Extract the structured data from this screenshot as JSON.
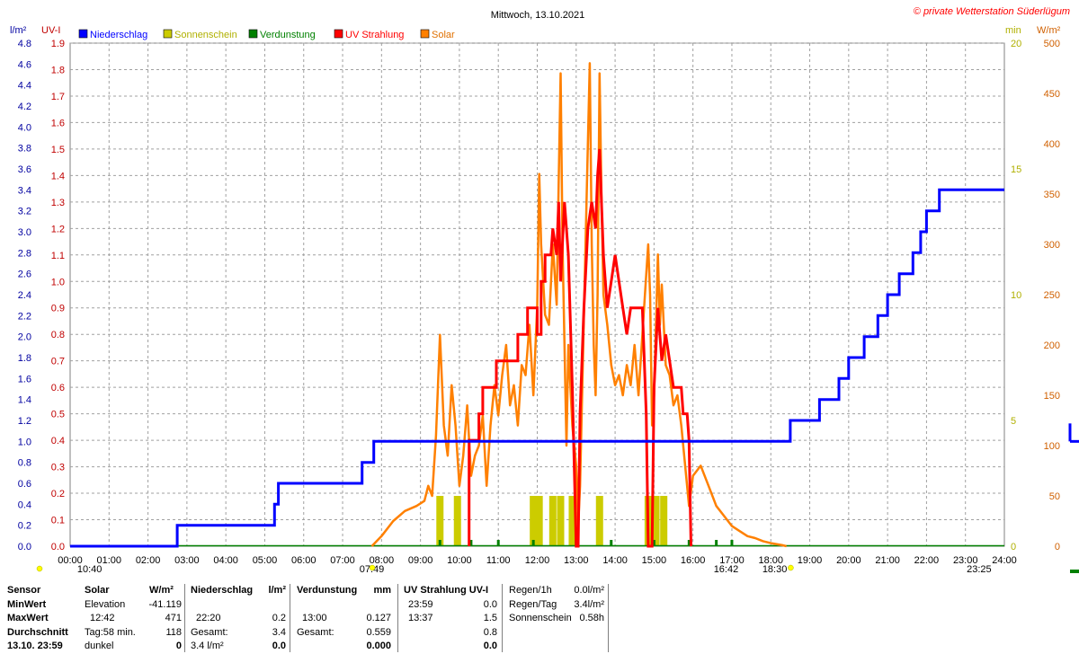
{
  "title": "Mittwoch, 13.10.2021",
  "copyright": "© private Wetterstation Süderlügum",
  "colors": {
    "niederschlag": "#0000ff",
    "sonnenschein": "#cccc00",
    "verdunstung": "#008000",
    "uv": "#ff0000",
    "solar": "#ff8000",
    "axis_blue": "#0000a0",
    "axis_red": "#c00000",
    "axis_yellow": "#b0b000",
    "axis_orange": "#d06000"
  },
  "legend": [
    {
      "label": "Niederschlag",
      "color": "#0000ff"
    },
    {
      "label": "Sonnenschein",
      "color": "#cccc00"
    },
    {
      "label": "Verdunstung",
      "color": "#008000"
    },
    {
      "label": "UV Strahlung",
      "color": "#ff0000"
    },
    {
      "label": "Solar",
      "color": "#ff8000"
    }
  ],
  "axis_units": {
    "left1": "l/m²",
    "left2": "UV-I",
    "right1": "min",
    "right2": "W/m²"
  },
  "chart_data": {
    "type": "line",
    "x_range_hours": [
      0,
      24
    ],
    "x_ticks": [
      "00:00",
      "01:00",
      "02:00",
      "03:00",
      "04:00",
      "05:00",
      "06:00",
      "07:00",
      "08:00",
      "09:00",
      "10:00",
      "11:00",
      "12:00",
      "13:00",
      "14:00",
      "15:00",
      "16:00",
      "17:00",
      "18:00",
      "19:00",
      "20:00",
      "21:00",
      "22:00",
      "23:00",
      "24:00"
    ],
    "y_niederschlag": {
      "range": [
        0,
        4.8
      ],
      "ticks": [
        "0.0",
        "0.2",
        "0.4",
        "0.6",
        "0.8",
        "1.0",
        "1.2",
        "1.4",
        "1.6",
        "1.8",
        "2.0",
        "2.2",
        "2.4",
        "2.6",
        "2.8",
        "3.0",
        "3.2",
        "3.4",
        "3.6",
        "3.8",
        "4.0",
        "4.2",
        "4.4",
        "4.6",
        "4.8"
      ]
    },
    "y_uv": {
      "range": [
        0,
        1.9
      ],
      "ticks": [
        "0.0",
        "0.1",
        "0.2",
        "0.3",
        "0.4",
        "0.5",
        "0.6",
        "0.7",
        "0.8",
        "0.9",
        "1.0",
        "1.1",
        "1.2",
        "1.3",
        "1.4",
        "1.5",
        "1.6",
        "1.7",
        "1.8",
        "1.9"
      ]
    },
    "y_min": {
      "range": [
        0,
        20
      ],
      "ticks": [
        "0",
        "5",
        "10",
        "15",
        "20"
      ]
    },
    "y_solar": {
      "range": [
        0,
        500
      ],
      "ticks": [
        "0",
        "50",
        "100",
        "150",
        "200",
        "250",
        "300",
        "350",
        "400",
        "450",
        "500"
      ]
    },
    "series": [
      {
        "name": "Niederschlag",
        "color": "#0000ff",
        "points": [
          [
            0,
            0
          ],
          [
            2.75,
            0
          ],
          [
            2.75,
            0.2
          ],
          [
            5.25,
            0.2
          ],
          [
            5.25,
            0.4
          ],
          [
            5.35,
            0.4
          ],
          [
            5.35,
            0.6
          ],
          [
            7.5,
            0.6
          ],
          [
            7.5,
            0.8
          ],
          [
            7.8,
            0.8
          ],
          [
            7.8,
            1.0
          ],
          [
            18.5,
            1.0
          ],
          [
            18.5,
            1.2
          ],
          [
            19.25,
            1.2
          ],
          [
            19.25,
            1.4
          ],
          [
            19.75,
            1.4
          ],
          [
            19.75,
            1.6
          ],
          [
            20.0,
            1.6
          ],
          [
            20.0,
            1.8
          ],
          [
            20.4,
            1.8
          ],
          [
            20.4,
            2.0
          ],
          [
            20.75,
            2.0
          ],
          [
            20.75,
            2.2
          ],
          [
            21.0,
            2.2
          ],
          [
            21.0,
            2.4
          ],
          [
            21.3,
            2.4
          ],
          [
            21.3,
            2.6
          ],
          [
            21.65,
            2.6
          ],
          [
            21.65,
            2.8
          ],
          [
            21.85,
            2.8
          ],
          [
            21.85,
            3.0
          ],
          [
            22.0,
            3.0
          ],
          [
            22.0,
            3.2
          ],
          [
            22.33,
            3.2
          ],
          [
            22.33,
            3.4
          ],
          [
            24,
            3.4
          ]
        ]
      },
      {
        "name": "UV Strahlung",
        "color": "#ff0000",
        "points": [
          [
            10.25,
            0
          ],
          [
            10.25,
            0.4
          ],
          [
            10.5,
            0.4
          ],
          [
            10.5,
            0.5
          ],
          [
            10.6,
            0.5
          ],
          [
            10.6,
            0.6
          ],
          [
            10.95,
            0.6
          ],
          [
            10.95,
            0.7
          ],
          [
            11.5,
            0.7
          ],
          [
            11.5,
            0.8
          ],
          [
            11.75,
            0.8
          ],
          [
            11.75,
            0.9
          ],
          [
            12.0,
            0.9
          ],
          [
            12.0,
            0.8
          ],
          [
            12.1,
            0.8
          ],
          [
            12.1,
            1.0
          ],
          [
            12.2,
            1.0
          ],
          [
            12.2,
            1.1
          ],
          [
            12.35,
            1.1
          ],
          [
            12.4,
            1.2
          ],
          [
            12.5,
            1.1
          ],
          [
            12.55,
            1.3
          ],
          [
            12.6,
            1.0
          ],
          [
            12.7,
            1.3
          ],
          [
            12.8,
            1.1
          ],
          [
            12.9,
            0.6
          ],
          [
            13.0,
            0.0
          ],
          [
            13.05,
            0.0
          ],
          [
            13.1,
            0.5
          ],
          [
            13.2,
            0.9
          ],
          [
            13.3,
            1.2
          ],
          [
            13.4,
            1.3
          ],
          [
            13.5,
            1.2
          ],
          [
            13.55,
            1.4
          ],
          [
            13.6,
            1.5
          ],
          [
            13.65,
            1.3
          ],
          [
            13.7,
            1.1
          ],
          [
            13.8,
            0.9
          ],
          [
            13.9,
            1.0
          ],
          [
            14.0,
            1.1
          ],
          [
            14.1,
            1.0
          ],
          [
            14.2,
            0.9
          ],
          [
            14.3,
            0.8
          ],
          [
            14.4,
            0.9
          ],
          [
            14.7,
            0.9
          ],
          [
            14.8,
            0.5
          ],
          [
            14.85,
            0.0
          ],
          [
            14.95,
            0.0
          ],
          [
            15.0,
            0.6
          ],
          [
            15.1,
            0.9
          ],
          [
            15.2,
            0.7
          ],
          [
            15.3,
            0.8
          ],
          [
            15.4,
            0.7
          ],
          [
            15.5,
            0.6
          ],
          [
            15.7,
            0.6
          ],
          [
            15.75,
            0.5
          ],
          [
            15.85,
            0.5
          ],
          [
            15.9,
            0.4
          ],
          [
            15.95,
            0.0
          ]
        ]
      },
      {
        "name": "Solar",
        "color": "#ff8000",
        "points": [
          [
            7.75,
            0
          ],
          [
            8.0,
            10
          ],
          [
            8.3,
            25
          ],
          [
            8.6,
            35
          ],
          [
            8.9,
            40
          ],
          [
            9.1,
            45
          ],
          [
            9.2,
            60
          ],
          [
            9.3,
            50
          ],
          [
            9.4,
            110
          ],
          [
            9.5,
            210
          ],
          [
            9.6,
            120
          ],
          [
            9.7,
            90
          ],
          [
            9.8,
            160
          ],
          [
            9.9,
            120
          ],
          [
            10.0,
            60
          ],
          [
            10.1,
            90
          ],
          [
            10.2,
            140
          ],
          [
            10.3,
            70
          ],
          [
            10.4,
            90
          ],
          [
            10.5,
            100
          ],
          [
            10.6,
            130
          ],
          [
            10.7,
            60
          ],
          [
            10.8,
            120
          ],
          [
            10.9,
            160
          ],
          [
            11.0,
            130
          ],
          [
            11.1,
            170
          ],
          [
            11.2,
            200
          ],
          [
            11.3,
            140
          ],
          [
            11.4,
            160
          ],
          [
            11.5,
            120
          ],
          [
            11.6,
            180
          ],
          [
            11.7,
            170
          ],
          [
            11.8,
            220
          ],
          [
            11.9,
            150
          ],
          [
            12.0,
            240
          ],
          [
            12.05,
            370
          ],
          [
            12.1,
            300
          ],
          [
            12.2,
            230
          ],
          [
            12.3,
            220
          ],
          [
            12.4,
            300
          ],
          [
            12.5,
            240
          ],
          [
            12.55,
            360
          ],
          [
            12.6,
            470
          ],
          [
            12.65,
            300
          ],
          [
            12.7,
            200
          ],
          [
            12.75,
            100
          ],
          [
            12.8,
            200
          ],
          [
            12.9,
            120
          ],
          [
            13.0,
            80
          ],
          [
            13.05,
            20
          ],
          [
            13.1,
            60
          ],
          [
            13.2,
            230
          ],
          [
            13.3,
            400
          ],
          [
            13.35,
            480
          ],
          [
            13.4,
            300
          ],
          [
            13.45,
            200
          ],
          [
            13.5,
            150
          ],
          [
            13.55,
            250
          ],
          [
            13.6,
            470
          ],
          [
            13.65,
            350
          ],
          [
            13.7,
            250
          ],
          [
            13.8,
            220
          ],
          [
            13.9,
            180
          ],
          [
            14.0,
            160
          ],
          [
            14.1,
            170
          ],
          [
            14.2,
            150
          ],
          [
            14.3,
            180
          ],
          [
            14.4,
            160
          ],
          [
            14.5,
            200
          ],
          [
            14.6,
            150
          ],
          [
            14.7,
            210
          ],
          [
            14.8,
            270
          ],
          [
            14.85,
            300
          ],
          [
            14.9,
            250
          ],
          [
            14.95,
            120
          ],
          [
            15.0,
            150
          ],
          [
            15.1,
            290
          ],
          [
            15.15,
            220
          ],
          [
            15.2,
            260
          ],
          [
            15.3,
            180
          ],
          [
            15.4,
            170
          ],
          [
            15.5,
            140
          ],
          [
            15.6,
            150
          ],
          [
            15.7,
            120
          ],
          [
            15.8,
            80
          ],
          [
            15.9,
            40
          ],
          [
            16.0,
            70
          ],
          [
            16.2,
            80
          ],
          [
            16.4,
            60
          ],
          [
            16.6,
            40
          ],
          [
            16.8,
            30
          ],
          [
            17.0,
            20
          ],
          [
            17.2,
            15
          ],
          [
            17.4,
            10
          ],
          [
            17.6,
            8
          ],
          [
            17.8,
            5
          ],
          [
            18.0,
            3
          ],
          [
            18.3,
            1
          ],
          [
            18.4,
            0
          ]
        ]
      }
    ],
    "bars": [
      {
        "name": "Sonnenschein",
        "color": "#cccc00",
        "points": [
          [
            9.5,
            5
          ],
          [
            9.95,
            5
          ],
          [
            11.9,
            5
          ],
          [
            12.05,
            5
          ],
          [
            12.4,
            5
          ],
          [
            12.6,
            5
          ],
          [
            12.9,
            5
          ],
          [
            13.6,
            5
          ],
          [
            14.85,
            5
          ],
          [
            15.05,
            5
          ],
          [
            15.25,
            5
          ]
        ]
      },
      {
        "name": "Verdunstung",
        "color": "#008000",
        "points": [
          [
            9.5,
            0.02
          ],
          [
            10.3,
            0.02
          ],
          [
            11.0,
            0.04
          ],
          [
            11.9,
            0.04
          ],
          [
            13.0,
            0.03
          ],
          [
            13.9,
            0.04
          ],
          [
            15.0,
            0.04
          ],
          [
            15.9,
            0.02
          ],
          [
            16.6,
            0.02
          ],
          [
            17.0,
            0.02
          ]
        ]
      }
    ],
    "below_axis_labels": [
      {
        "text": "10:40",
        "hour": 0.5
      },
      {
        "text": "07:49",
        "hour": 7.75
      },
      {
        "text": "16:42",
        "hour": 16.85
      },
      {
        "text": "18:30",
        "hour": 18.1
      },
      {
        "text": "23:25",
        "hour": 23.35
      }
    ]
  },
  "stats": {
    "row_labels": [
      "Sensor",
      "MinWert",
      "MaxWert",
      "Durchschnitt",
      "13.10. 23:59"
    ],
    "solar": {
      "header": "Solar",
      "unit": "W/m²",
      "rows": [
        [
          "Elevation",
          "-41.119"
        ],
        [
          "12:42",
          "471"
        ],
        [
          "Tag:58 min.",
          "118"
        ],
        [
          "dunkel",
          "0"
        ]
      ]
    },
    "niederschlag": {
      "header": "Niederschlag",
      "unit": "l/m²",
      "rows": [
        [
          "",
          ""
        ],
        [
          "22:20",
          "0.2"
        ],
        [
          "Gesamt:",
          "3.4"
        ],
        [
          "3.4 l/m²",
          "0.0"
        ]
      ]
    },
    "verdunstung": {
      "header": "Verdunstung",
      "unit": "mm",
      "rows": [
        [
          "",
          ""
        ],
        [
          "13:00",
          "0.127"
        ],
        [
          "Gesamt:",
          "0.559"
        ],
        [
          "",
          "0.000"
        ]
      ]
    },
    "uv": {
      "header": "UV Strahlung UV-I",
      "unit": "",
      "rows": [
        [
          "23:59",
          "0.0"
        ],
        [
          "13:37",
          "1.5"
        ],
        [
          "",
          "0.8"
        ],
        [
          "",
          "0.0"
        ]
      ]
    },
    "extra": {
      "rows": [
        [
          "Regen/1h",
          "0.0l/m²"
        ],
        [
          "Regen/Tag",
          "3.4l/m²"
        ],
        [
          "Sonnenschein",
          "0.58h"
        ]
      ]
    }
  }
}
